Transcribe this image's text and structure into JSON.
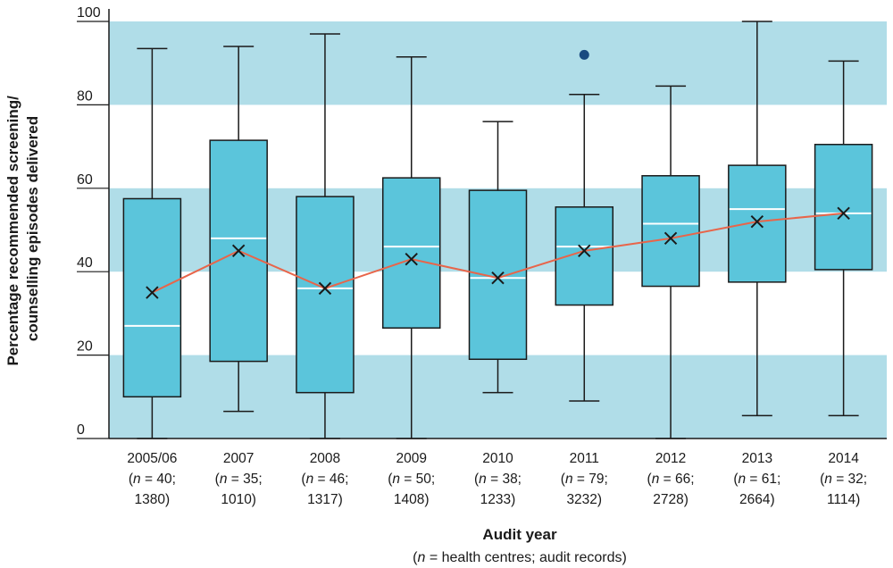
{
  "chart_data": {
    "type": "boxplot",
    "xlabel": "Audit year",
    "xlabel_note_prefix": "(",
    "xlabel_note_n": "n",
    "xlabel_note_rest": " = health centres; audit records)",
    "ylabel_line1": "Percentage recommended screening/",
    "ylabel_line2": "counselling episodes delivered",
    "ylim": [
      0,
      100
    ],
    "yticks": [
      0,
      20,
      40,
      60,
      80,
      100
    ],
    "background_bands": [
      [
        0,
        20
      ],
      [
        40,
        60
      ],
      [
        80,
        100
      ]
    ],
    "colors": {
      "band": "#b0dde8",
      "box_fill": "#5bc5db",
      "box_stroke": "#1a1a1a",
      "median": "#ffffff",
      "mean_line": "#e8654a",
      "mean_marker": "#1a1a1a",
      "outlier": "#1a4a80",
      "axis": "#1a1a1a"
    },
    "categories": [
      {
        "year": "2005/06",
        "n_centres": "40",
        "n_records": "1380",
        "min": 0,
        "q1": 10,
        "median": 27,
        "q3": 57.5,
        "max": 93.5,
        "mean": 35
      },
      {
        "year": "2007",
        "n_centres": "35",
        "n_records": "1010",
        "min": 6.5,
        "q1": 18.5,
        "median": 48,
        "q3": 71.5,
        "max": 94,
        "mean": 45
      },
      {
        "year": "2008",
        "n_centres": "46",
        "n_records": "1317",
        "min": 0,
        "q1": 11,
        "median": 36,
        "q3": 58,
        "max": 97,
        "mean": 36
      },
      {
        "year": "2009",
        "n_centres": "50",
        "n_records": "1408",
        "min": 0,
        "q1": 26.5,
        "median": 46,
        "q3": 62.5,
        "max": 91.5,
        "mean": 43
      },
      {
        "year": "2010",
        "n_centres": "38",
        "n_records": "1233",
        "min": 11,
        "q1": 19,
        "median": 38.5,
        "q3": 59.5,
        "max": 76,
        "mean": 38.5
      },
      {
        "year": "2011",
        "n_centres": "79",
        "n_records": "3232",
        "min": 9,
        "q1": 32,
        "median": 46,
        "q3": 55.5,
        "max": 82.5,
        "mean": 45,
        "outliers": [
          92
        ]
      },
      {
        "year": "2012",
        "n_centres": "66",
        "n_records": "2728",
        "min": 0,
        "q1": 36.5,
        "median": 51.5,
        "q3": 63,
        "max": 84.5,
        "mean": 48
      },
      {
        "year": "2013",
        "n_centres": "61",
        "n_records": "2664",
        "min": 5.5,
        "q1": 37.5,
        "median": 55,
        "q3": 65.5,
        "max": 100,
        "mean": 52
      },
      {
        "year": "2014",
        "n_centres": "32",
        "n_records": "1114",
        "min": 5.5,
        "q1": 40.5,
        "median": 54,
        "q3": 70.5,
        "max": 90.5,
        "mean": 54
      }
    ]
  }
}
